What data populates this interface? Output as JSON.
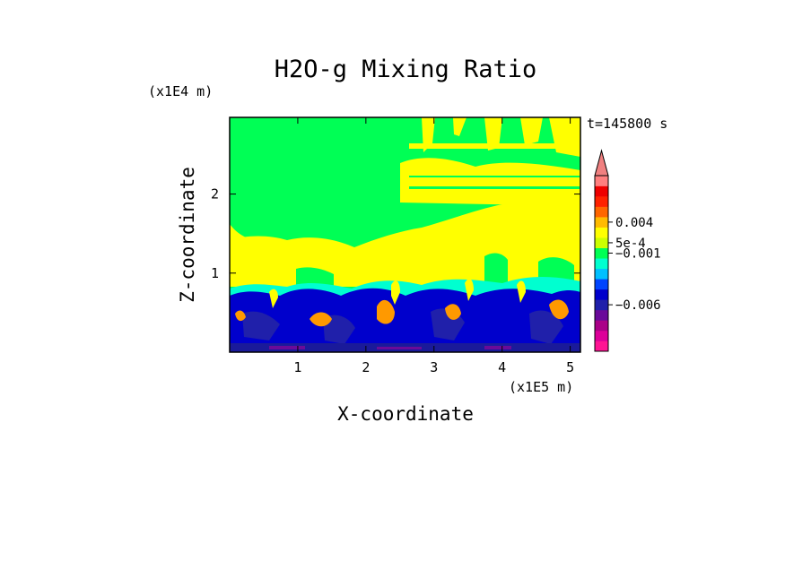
{
  "chart_data": {
    "type": "heatmap",
    "title": "H2O-g Mixing Ratio",
    "xlabel": "X-coordinate",
    "ylabel": "Z-coordinate",
    "x_unit": "(x1E5 m)",
    "y_unit": "(x1E4 m)",
    "time_label": "t=145800 s",
    "xlim": [
      0,
      5.15
    ],
    "ylim": [
      0,
      2.97
    ],
    "x_ticks": [
      {
        "value": 1,
        "label": "1"
      },
      {
        "value": 2,
        "label": "2"
      },
      {
        "value": 3,
        "label": "3"
      },
      {
        "value": 4,
        "label": "4"
      },
      {
        "value": 5,
        "label": "5"
      }
    ],
    "y_ticks": [
      {
        "value": 1,
        "label": "1"
      },
      {
        "value": 2,
        "label": "2"
      }
    ],
    "colorbar": {
      "extend_max": true,
      "extend_color": "#f08080",
      "colors": [
        "#ff1493",
        "#dd0099",
        "#aa0088",
        "#6a0a9a",
        "#2020aa",
        "#0000cc",
        "#0044ff",
        "#00c0ff",
        "#00ffd0",
        "#00ff55",
        "#ccff00",
        "#ffff00",
        "#ffbb00",
        "#ff6600",
        "#ff2200",
        "#ee0000",
        "#ff7f7f"
      ],
      "labels": [
        {
          "level": 12.5,
          "text": "0.004"
        },
        {
          "level": 10.5,
          "text": "5e-4"
        },
        {
          "level": 9.5,
          "text": "−0.001"
        },
        {
          "level": 4.5,
          "text": "−0.006"
        }
      ]
    },
    "colors": {
      "background_field": "#00ff55",
      "moist_field": "#ffff00",
      "boundary_layer": "#0000cc",
      "cloud_cores": "#ff9900"
    }
  }
}
